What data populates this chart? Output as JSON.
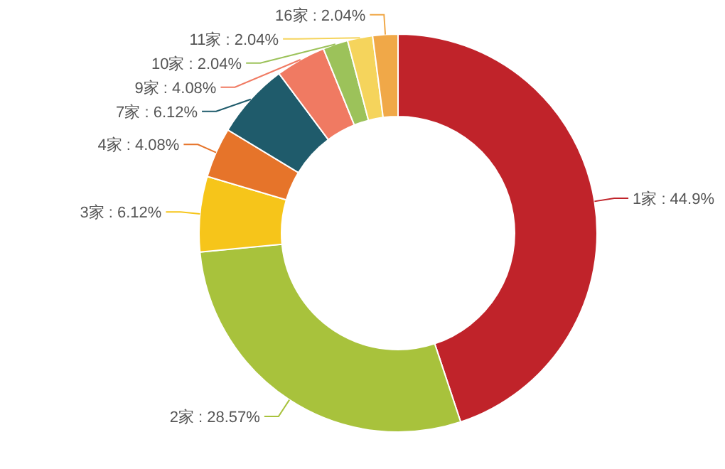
{
  "chart_data": {
    "type": "donut",
    "categories": [
      "1家",
      "2家",
      "3家",
      "4家",
      "7家",
      "9家",
      "10家",
      "11家",
      "16家"
    ],
    "values": [
      44.9,
      28.57,
      6.12,
      4.08,
      6.12,
      4.08,
      2.04,
      2.04,
      2.04
    ],
    "colors": [
      "#c0232a",
      "#a8c23c",
      "#f6c51a",
      "#e6742a",
      "#1f5b6b",
      "#f07a62",
      "#9cc25a",
      "#f5d45c",
      "#f0a848"
    ],
    "value_labels": [
      ": 44.9%",
      ": 28.57%",
      ": 6.12%",
      ": 4.08%",
      ": 6.12%",
      ": 4.08%",
      ": 2.04%",
      ": 2.04%",
      ": 2.04%"
    ]
  }
}
